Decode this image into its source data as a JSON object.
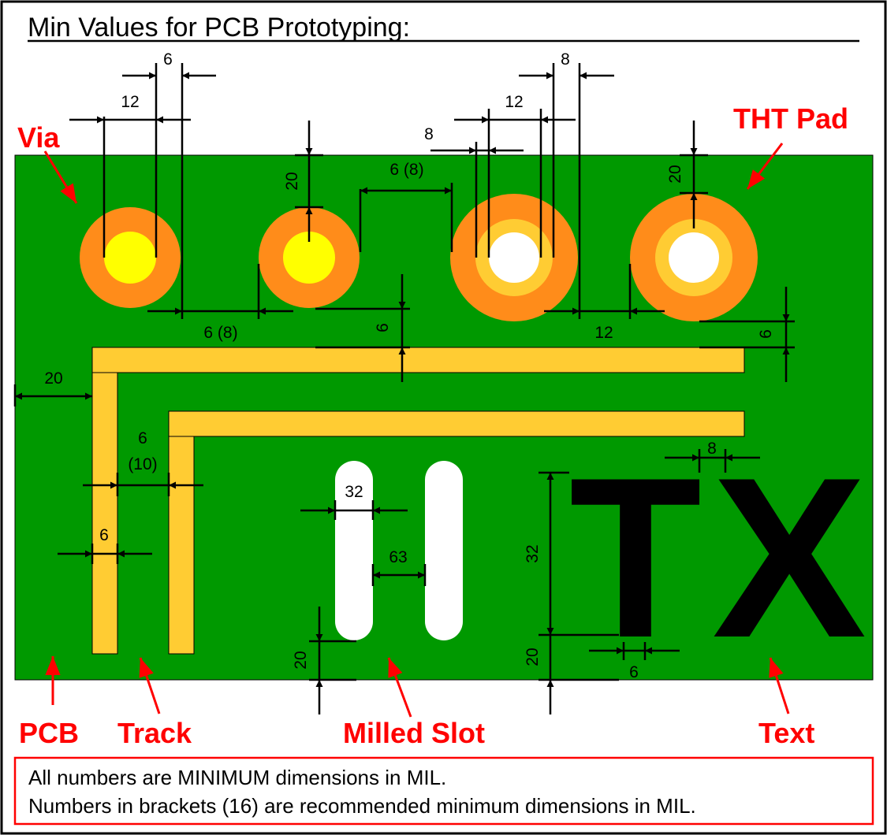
{
  "title": "Min Values for PCB Prototyping:",
  "labels": {
    "via": "Via",
    "tht_pad": "THT Pad",
    "pcb": "PCB",
    "track": "Track",
    "milled_slot": "Milled Slot",
    "text": "Text"
  },
  "big_text": {
    "t": "T",
    "x": "X"
  },
  "dims": {
    "via_ring": "6",
    "via_drill": "12",
    "via_edge": "20",
    "via_gap": "6 (8)",
    "via_spacing": "6 (8)",
    "tht_drill_label": "8",
    "tht_drill": "12",
    "tht_ring": "8",
    "tht_edge": "20",
    "tht_gap": "12",
    "track_pad": "6",
    "track_edge": "6",
    "track_border": "20",
    "track_gap": "6\n(10)",
    "track_gap_a": "6",
    "track_gap_b": "(10)",
    "track_width": "6",
    "slot_width": "32",
    "slot_gap": "63",
    "slot_edge": "20",
    "text_height": "32",
    "text_edge": "20",
    "text_stroke": "6",
    "text_spacing": "8"
  },
  "notes": {
    "line1": "All numbers are MINIMUM dimensions in MIL.",
    "line2": "Numbers in brackets (16) are recommended minimum dimensions in MIL."
  },
  "colors": {
    "pcb": "#009900",
    "copper": "#ff8c1a",
    "track": "#ffcc33",
    "via_drill": "#ffff00",
    "tht_inner": "#ffcc33",
    "label_red": "#ff0000"
  }
}
